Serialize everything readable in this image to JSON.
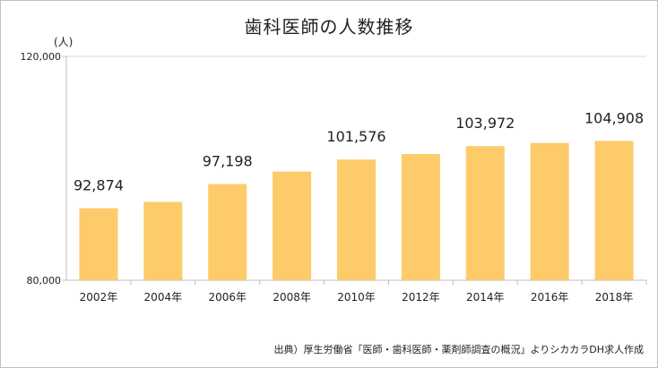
{
  "title": "歯科医師の人数推移",
  "unit": "(人)",
  "source": "出典）厚生労働省「医師・歯科医師・薬剤師調査の概況」よりシカカラDH求人作成",
  "colors": {
    "bar": "#fecb6a",
    "gridline": "#d9d9d9",
    "axis": "#bfbfbf",
    "frame": "#bfbfbf"
  },
  "chart_data": {
    "type": "bar",
    "title": "歯科医師の人数推移",
    "xlabel": "",
    "ylabel": "(人)",
    "categories": [
      "2002年",
      "2004年",
      "2006年",
      "2008年",
      "2010年",
      "2012年",
      "2014年",
      "2016年",
      "2018年"
    ],
    "values": [
      92874,
      94000,
      97198,
      99426,
      101576,
      102551,
      103972,
      104533,
      104908
    ],
    "data_labels": [
      "92,874",
      "",
      "97,198",
      "",
      "101,576",
      "",
      "103,972",
      "",
      "104,908"
    ],
    "ylim": [
      80000,
      120000
    ],
    "yticks": [
      "80,000",
      "120,000"
    ],
    "grid": true,
    "legend": "none"
  }
}
